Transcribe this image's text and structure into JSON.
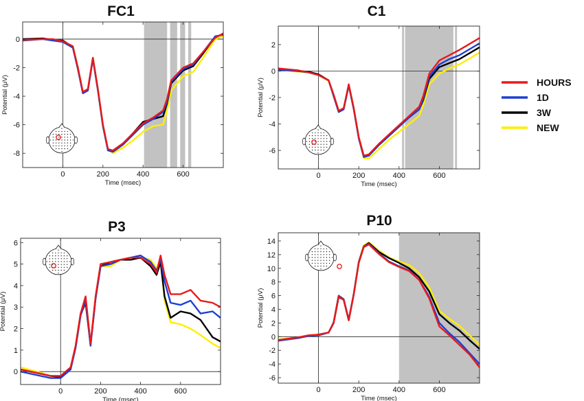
{
  "legend": [
    {
      "label": "HOURS",
      "color": "#e8191b"
    },
    {
      "label": "1D",
      "color": "#1a3fd6"
    },
    {
      "label": "3W",
      "color": "#000000"
    },
    {
      "label": "NEW",
      "color": "#ffee00"
    }
  ],
  "chart_data": [
    {
      "type": "line",
      "title": "FC1",
      "xlabel": "Time (msec)",
      "ylabel": "Potential (μV)",
      "xlim": [
        -200,
        800
      ],
      "ylim": [
        -9,
        1.2
      ],
      "xticks": [
        0,
        200,
        400,
        600
      ],
      "yticks": [
        0,
        -2,
        -4,
        -6,
        -8
      ],
      "shaded": [
        [
          405,
          520
        ],
        [
          535,
          570
        ],
        [
          585,
          610
        ],
        [
          625,
          640
        ]
      ],
      "electrode_inset": "top-left",
      "series": [
        {
          "name": "HOURS",
          "x": [
            -200,
            -100,
            -50,
            0,
            50,
            75,
            100,
            125,
            150,
            175,
            200,
            225,
            250,
            300,
            350,
            400,
            450,
            500,
            520,
            540,
            600,
            650,
            700,
            760,
            800
          ],
          "y": [
            -0.05,
            0.0,
            0.0,
            -0.15,
            -0.5,
            -2.0,
            -3.7,
            -3.5,
            -1.3,
            -3.5,
            -6.0,
            -7.7,
            -7.8,
            -7.3,
            -6.6,
            -5.9,
            -5.5,
            -5.0,
            -4.2,
            -2.9,
            -2.0,
            -1.7,
            -0.9,
            0.1,
            0.4
          ]
        },
        {
          "name": "1D",
          "x": [
            -200,
            -100,
            -50,
            0,
            50,
            75,
            100,
            125,
            150,
            175,
            200,
            225,
            250,
            300,
            350,
            400,
            450,
            500,
            520,
            540,
            600,
            650,
            700,
            760,
            800
          ],
          "y": [
            -0.1,
            0.0,
            -0.1,
            -0.2,
            -0.6,
            -2.1,
            -3.8,
            -3.6,
            -1.4,
            -3.6,
            -6.1,
            -7.8,
            -7.9,
            -7.4,
            -6.7,
            -6.0,
            -5.6,
            -5.1,
            -4.4,
            -3.0,
            -2.1,
            -1.8,
            -0.9,
            0.2,
            0.3
          ]
        },
        {
          "name": "3W",
          "x": [
            -200,
            -100,
            -50,
            0,
            50,
            75,
            100,
            125,
            150,
            175,
            200,
            225,
            250,
            300,
            350,
            400,
            450,
            500,
            520,
            540,
            600,
            650,
            700,
            760,
            800
          ],
          "y": [
            0.0,
            0.05,
            -0.05,
            -0.1,
            -0.55,
            -2.0,
            -3.75,
            -3.55,
            -1.35,
            -3.55,
            -6.05,
            -7.75,
            -7.85,
            -7.35,
            -6.6,
            -5.8,
            -5.6,
            -5.4,
            -4.5,
            -3.1,
            -2.2,
            -1.9,
            -1.0,
            0.15,
            0.35
          ]
        },
        {
          "name": "NEW",
          "x": [
            -200,
            -100,
            -50,
            0,
            50,
            75,
            100,
            125,
            150,
            175,
            200,
            225,
            250,
            300,
            350,
            400,
            450,
            500,
            520,
            540,
            600,
            650,
            700,
            760,
            800
          ],
          "y": [
            -0.1,
            0.0,
            -0.05,
            -0.15,
            -0.5,
            -2.0,
            -3.7,
            -3.6,
            -1.3,
            -3.6,
            -6.1,
            -7.7,
            -8.0,
            -7.6,
            -7.1,
            -6.5,
            -6.1,
            -6.0,
            -5.0,
            -3.6,
            -2.6,
            -2.3,
            -1.3,
            0.0,
            0.2
          ]
        }
      ]
    },
    {
      "type": "line",
      "title": "C1",
      "xlabel": "Time (msec)",
      "ylabel": "Potential (μV)",
      "xlim": [
        -200,
        800
      ],
      "ylim": [
        -7.4,
        3.4
      ],
      "xticks": [
        0,
        200,
        400,
        600
      ],
      "yticks": [
        2,
        0,
        -2,
        -4,
        -6
      ],
      "shaded": [
        [
          415,
          425
        ],
        [
          430,
          670
        ],
        [
          678,
          688
        ]
      ],
      "electrode_inset": "bottom-left",
      "series": [
        {
          "name": "HOURS",
          "x": [
            -200,
            -100,
            -50,
            0,
            50,
            75,
            100,
            125,
            150,
            175,
            200,
            225,
            250,
            300,
            350,
            400,
            450,
            500,
            520,
            550,
            600,
            650,
            700,
            800
          ],
          "y": [
            0.2,
            0.05,
            -0.1,
            -0.3,
            -0.7,
            -1.8,
            -3.0,
            -2.8,
            -1.0,
            -2.8,
            -5.0,
            -6.4,
            -6.3,
            -5.5,
            -4.8,
            -4.1,
            -3.4,
            -2.7,
            -1.9,
            -0.2,
            0.8,
            1.2,
            1.6,
            2.5
          ]
        },
        {
          "name": "1D",
          "x": [
            -200,
            -100,
            -50,
            0,
            50,
            75,
            100,
            125,
            150,
            175,
            200,
            225,
            250,
            300,
            350,
            400,
            450,
            500,
            520,
            550,
            600,
            650,
            700,
            800
          ],
          "y": [
            0.1,
            0.0,
            -0.1,
            -0.3,
            -0.7,
            -1.9,
            -3.1,
            -2.9,
            -1.1,
            -2.9,
            -5.1,
            -6.5,
            -6.4,
            -5.6,
            -4.9,
            -4.2,
            -3.5,
            -2.9,
            -2.1,
            -0.4,
            0.5,
            0.9,
            1.2,
            2.1
          ]
        },
        {
          "name": "3W",
          "x": [
            -200,
            -100,
            -50,
            0,
            50,
            75,
            100,
            125,
            150,
            175,
            200,
            225,
            250,
            300,
            350,
            400,
            450,
            500,
            520,
            550,
            600,
            650,
            700,
            800
          ],
          "y": [
            0.15,
            0.0,
            -0.05,
            -0.25,
            -0.7,
            -1.8,
            -3.0,
            -2.85,
            -1.05,
            -2.85,
            -5.05,
            -6.45,
            -6.35,
            -5.6,
            -4.9,
            -4.2,
            -3.5,
            -2.9,
            -2.2,
            -0.6,
            0.3,
            0.6,
            0.9,
            1.8
          ]
        },
        {
          "name": "NEW",
          "x": [
            -200,
            -100,
            -50,
            0,
            50,
            75,
            100,
            125,
            150,
            175,
            200,
            225,
            250,
            300,
            350,
            400,
            450,
            500,
            520,
            550,
            600,
            650,
            700,
            800
          ],
          "y": [
            0.1,
            -0.05,
            -0.1,
            -0.3,
            -0.75,
            -1.9,
            -3.1,
            -2.9,
            -1.1,
            -2.9,
            -5.1,
            -6.6,
            -6.6,
            -5.9,
            -5.2,
            -4.6,
            -4.0,
            -3.4,
            -2.6,
            -1.0,
            -0.2,
            0.2,
            0.5,
            1.4
          ]
        }
      ]
    },
    {
      "type": "line",
      "title": "P3",
      "xlabel": "Time (msec)",
      "ylabel": "Potential (μV)",
      "xlim": [
        -200,
        800
      ],
      "ylim": [
        -0.6,
        6.2
      ],
      "xticks": [
        0,
        200,
        400,
        600
      ],
      "yticks": [
        0,
        1,
        2,
        3,
        4,
        5,
        6
      ],
      "shaded": [],
      "electrode_inset": "top-left",
      "series": [
        {
          "name": "HOURS",
          "x": [
            -200,
            -100,
            -50,
            0,
            50,
            75,
            100,
            125,
            150,
            175,
            200,
            250,
            300,
            350,
            400,
            450,
            480,
            500,
            520,
            550,
            600,
            650,
            700,
            760,
            800
          ],
          "y": [
            0.1,
            -0.1,
            -0.2,
            -0.2,
            0.2,
            1.2,
            2.7,
            3.5,
            1.3,
            3.5,
            5.0,
            5.1,
            5.2,
            5.3,
            5.3,
            5.0,
            4.6,
            5.4,
            4.5,
            3.6,
            3.6,
            3.8,
            3.3,
            3.2,
            3.0
          ]
        },
        {
          "name": "1D",
          "x": [
            -200,
            -100,
            -50,
            0,
            50,
            75,
            100,
            125,
            150,
            175,
            200,
            250,
            300,
            350,
            400,
            450,
            480,
            500,
            520,
            550,
            600,
            650,
            700,
            760,
            800
          ],
          "y": [
            0.0,
            -0.2,
            -0.3,
            -0.3,
            0.1,
            1.1,
            2.6,
            3.3,
            1.2,
            3.4,
            4.9,
            5.0,
            5.2,
            5.3,
            5.4,
            5.1,
            4.7,
            5.2,
            4.2,
            3.2,
            3.1,
            3.3,
            2.7,
            2.8,
            2.5
          ]
        },
        {
          "name": "3W",
          "x": [
            -200,
            -100,
            -50,
            0,
            50,
            75,
            100,
            125,
            150,
            175,
            200,
            250,
            300,
            350,
            400,
            450,
            480,
            500,
            520,
            550,
            600,
            650,
            700,
            760,
            800
          ],
          "y": [
            0.1,
            -0.1,
            -0.2,
            -0.25,
            0.15,
            1.15,
            2.65,
            3.2,
            1.25,
            3.4,
            4.9,
            5.1,
            5.2,
            5.2,
            5.3,
            4.9,
            4.5,
            5.1,
            3.5,
            2.5,
            2.8,
            2.7,
            2.4,
            1.6,
            1.4
          ]
        },
        {
          "name": "NEW",
          "x": [
            -200,
            -100,
            -50,
            0,
            50,
            75,
            100,
            125,
            150,
            175,
            200,
            250,
            300,
            350,
            400,
            450,
            480,
            500,
            520,
            550,
            600,
            650,
            700,
            760,
            800
          ],
          "y": [
            0.2,
            -0.05,
            -0.2,
            -0.2,
            0.2,
            1.2,
            2.7,
            3.3,
            1.3,
            3.4,
            4.9,
            4.9,
            5.2,
            5.3,
            5.3,
            5.2,
            4.8,
            5.3,
            3.3,
            2.3,
            2.2,
            2.0,
            1.7,
            1.3,
            1.1
          ]
        }
      ]
    },
    {
      "type": "line",
      "title": "P10",
      "xlabel": "Time (msec)",
      "ylabel": "Potential (μV)",
      "xlim": [
        -200,
        800
      ],
      "ylim": [
        -6.8,
        15.2
      ],
      "xticks": [
        0,
        200,
        400,
        600
      ],
      "yticks": [
        14,
        12,
        10,
        8,
        6,
        4,
        2,
        0,
        -2,
        -4,
        -6
      ],
      "shaded": [
        [
          400,
          800
        ]
      ],
      "electrode_inset": "top-left",
      "series": [
        {
          "name": "HOURS",
          "x": [
            -200,
            -100,
            -50,
            0,
            50,
            75,
            100,
            125,
            150,
            175,
            200,
            225,
            250,
            300,
            350,
            400,
            450,
            500,
            550,
            600,
            650,
            700,
            750,
            800
          ],
          "y": [
            -0.5,
            -0.1,
            0.2,
            0.3,
            0.6,
            2.0,
            5.9,
            5.4,
            2.4,
            6.2,
            10.8,
            13.1,
            13.5,
            12.1,
            10.9,
            10.2,
            9.6,
            8.3,
            5.6,
            1.5,
            0.2,
            -1.2,
            -2.6,
            -4.5
          ]
        },
        {
          "name": "1D",
          "x": [
            -200,
            -100,
            -50,
            0,
            50,
            75,
            100,
            125,
            150,
            175,
            200,
            225,
            250,
            300,
            350,
            400,
            450,
            500,
            550,
            600,
            650,
            700,
            750,
            800
          ],
          "y": [
            -0.6,
            -0.2,
            0.1,
            0.2,
            0.6,
            2.1,
            6.0,
            5.5,
            2.5,
            6.3,
            10.9,
            13.2,
            13.6,
            12.2,
            11.0,
            10.3,
            9.7,
            8.3,
            5.8,
            2.0,
            0.5,
            -0.8,
            -2.4,
            -4.0
          ]
        },
        {
          "name": "3W",
          "x": [
            -200,
            -100,
            -50,
            0,
            50,
            75,
            100,
            125,
            150,
            175,
            200,
            225,
            250,
            300,
            350,
            400,
            450,
            500,
            550,
            600,
            650,
            700,
            750,
            800
          ],
          "y": [
            -0.5,
            -0.1,
            0.1,
            0.3,
            0.6,
            2.0,
            5.8,
            5.4,
            2.4,
            6.2,
            10.9,
            13.2,
            13.7,
            12.4,
            11.5,
            10.8,
            10.0,
            8.7,
            6.6,
            3.3,
            2.0,
            0.9,
            -0.5,
            -1.8
          ]
        },
        {
          "name": "NEW",
          "x": [
            -200,
            -100,
            -50,
            0,
            50,
            75,
            100,
            125,
            150,
            175,
            200,
            225,
            250,
            300,
            350,
            400,
            450,
            500,
            550,
            600,
            650,
            700,
            750,
            800
          ],
          "y": [
            -0.4,
            -0.1,
            0.2,
            0.3,
            0.6,
            2.1,
            6.0,
            5.5,
            2.5,
            6.3,
            11.0,
            13.4,
            13.8,
            12.6,
            11.6,
            11.0,
            10.5,
            9.3,
            7.2,
            3.8,
            2.6,
            1.6,
            0.2,
            -1.2
          ]
        }
      ]
    }
  ]
}
